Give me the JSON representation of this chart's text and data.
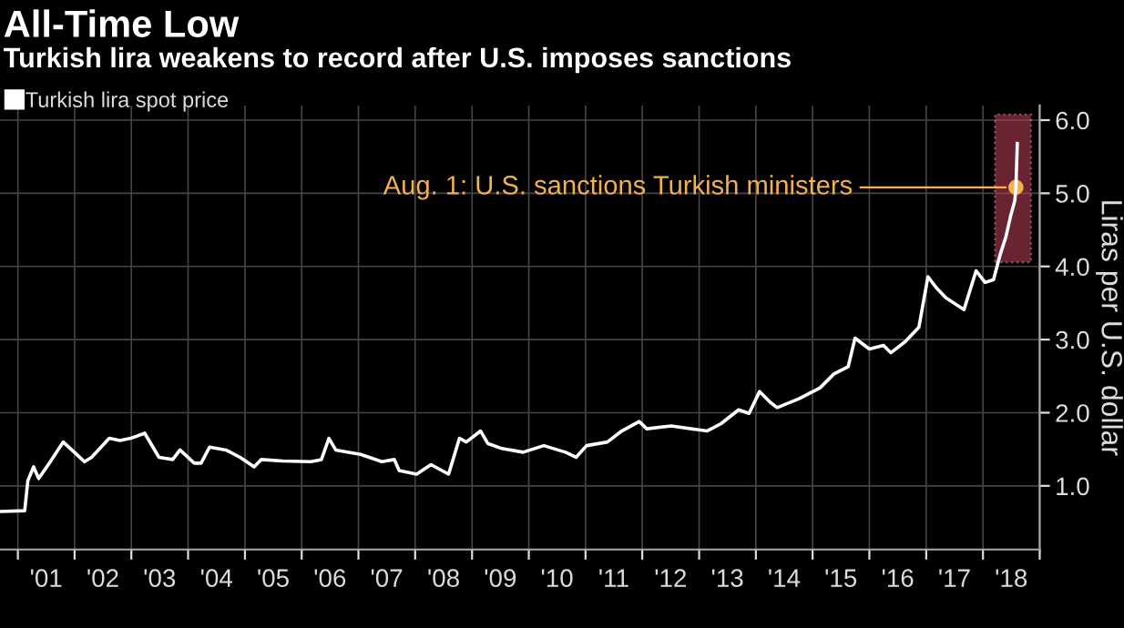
{
  "chart_data": {
    "type": "line",
    "title": "All-Time Low",
    "subtitle": "Turkish lira weakens to record after U.S. imposes sanctions",
    "ylabel": "Liras per U.S. dollar",
    "x": [
      "2000-09-08",
      "2001-02-14",
      "2001-03-06",
      "2001-04-12",
      "2001-05-15",
      "2001-07-22",
      "2001-10-20",
      "2002-03-06",
      "2002-04-20",
      "2002-08-12",
      "2002-10-20",
      "2002-12-28",
      "2003-03-28",
      "2003-06-28",
      "2003-09-24",
      "2003-11-10",
      "2004-02-10",
      "2004-03-25",
      "2004-05-18",
      "2004-09-01",
      "2004-12-01",
      "2005-03-01",
      "2005-04-15",
      "2005-09-01",
      "2006-03-01",
      "2006-05-08",
      "2006-06-25",
      "2006-08-08",
      "2007-01-15",
      "2007-06-01",
      "2007-08-20",
      "2007-09-20",
      "2008-01-10",
      "2008-04-12",
      "2008-08-03",
      "2008-10-12",
      "2008-11-25",
      "2009-02-25",
      "2009-04-12",
      "2009-07-12",
      "2009-11-25",
      "2010-04-08",
      "2010-08-25",
      "2010-11-01",
      "2011-01-08",
      "2011-05-22",
      "2011-08-22",
      "2011-12-12",
      "2012-01-30",
      "2012-07-05",
      "2013-02-20",
      "2013-05-22",
      "2013-09-12",
      "2013-11-18",
      "2014-01-25",
      "2014-04-05",
      "2014-05-18",
      "2014-10-05",
      "2015-02-18",
      "2015-05-18",
      "2015-08-18",
      "2015-10-01",
      "2016-01-01",
      "2016-04-01",
      "2016-05-18",
      "2016-08-18",
      "2016-11-15",
      "2017-01-12",
      "2017-03-10",
      "2017-05-08",
      "2017-09-01",
      "2017-11-18",
      "2018-01-15",
      "2018-03-10",
      "2018-04-20",
      "2018-05-28",
      "2018-06-28",
      "2018-07-25",
      "2018-08-01",
      "2018-08-10"
    ],
    "series": [
      {
        "name": "Turkish lira spot price",
        "color": "#ffffff",
        "values": [
          0.65,
          0.66,
          1.07,
          1.26,
          1.1,
          1.31,
          1.6,
          1.33,
          1.39,
          1.65,
          1.62,
          1.65,
          1.72,
          1.39,
          1.36,
          1.49,
          1.31,
          1.31,
          1.53,
          1.49,
          1.39,
          1.26,
          1.36,
          1.34,
          1.33,
          1.36,
          1.65,
          1.49,
          1.43,
          1.33,
          1.36,
          1.21,
          1.16,
          1.29,
          1.16,
          1.65,
          1.6,
          1.75,
          1.58,
          1.51,
          1.46,
          1.55,
          1.46,
          1.39,
          1.55,
          1.6,
          1.75,
          1.88,
          1.78,
          1.82,
          1.75,
          1.85,
          2.04,
          1.99,
          2.29,
          2.14,
          2.07,
          2.19,
          2.34,
          2.53,
          2.63,
          3.02,
          2.87,
          2.92,
          2.82,
          2.97,
          3.17,
          3.86,
          3.7,
          3.57,
          3.41,
          3.94,
          3.78,
          3.82,
          4.15,
          4.4,
          4.69,
          4.9,
          5.08,
          5.68
        ]
      }
    ],
    "annotations": [
      {
        "text": "Aug. 1: U.S. sanctions Turkish ministers",
        "x": "2018-08-01",
        "y": 5.08
      }
    ],
    "bands": [
      {
        "axis": "x",
        "from": "2018-03-20",
        "to": "2018-11-05",
        "label": null,
        "color": "#c0405a"
      }
    ],
    "xlim": [
      "2000-09-08",
      "2019-01-01"
    ],
    "ylim": [
      0.13,
      6.2
    ],
    "xticks": [
      {
        "value": "2001-01-01",
        "label": null
      },
      {
        "value": "2001-07-02",
        "label": "'01"
      },
      {
        "value": "2002-01-01",
        "label": null
      },
      {
        "value": "2002-07-02",
        "label": "'02"
      },
      {
        "value": "2003-01-01",
        "label": null
      },
      {
        "value": "2003-07-02",
        "label": "'03"
      },
      {
        "value": "2004-01-01",
        "label": null
      },
      {
        "value": "2004-07-02",
        "label": "'04"
      },
      {
        "value": "2005-01-01",
        "label": null
      },
      {
        "value": "2005-07-02",
        "label": "'05"
      },
      {
        "value": "2006-01-01",
        "label": null
      },
      {
        "value": "2006-07-02",
        "label": "'06"
      },
      {
        "value": "2007-01-01",
        "label": null
      },
      {
        "value": "2007-07-02",
        "label": "'07"
      },
      {
        "value": "2008-01-01",
        "label": null
      },
      {
        "value": "2008-07-02",
        "label": "'08"
      },
      {
        "value": "2009-01-01",
        "label": null
      },
      {
        "value": "2009-07-02",
        "label": "'09"
      },
      {
        "value": "2010-01-01",
        "label": null
      },
      {
        "value": "2010-07-02",
        "label": "'10"
      },
      {
        "value": "2011-01-01",
        "label": null
      },
      {
        "value": "2011-07-02",
        "label": "'11"
      },
      {
        "value": "2012-01-01",
        "label": null
      },
      {
        "value": "2012-07-02",
        "label": "'12"
      },
      {
        "value": "2013-01-01",
        "label": null
      },
      {
        "value": "2013-07-02",
        "label": "'13"
      },
      {
        "value": "2014-01-01",
        "label": null
      },
      {
        "value": "2014-07-02",
        "label": "'14"
      },
      {
        "value": "2015-01-01",
        "label": null
      },
      {
        "value": "2015-07-02",
        "label": "'15"
      },
      {
        "value": "2016-01-01",
        "label": null
      },
      {
        "value": "2016-07-02",
        "label": "'16"
      },
      {
        "value": "2017-01-01",
        "label": null
      },
      {
        "value": "2017-07-02",
        "label": "'17"
      },
      {
        "value": "2018-01-01",
        "label": null
      },
      {
        "value": "2018-07-02",
        "label": "'18"
      },
      {
        "value": "2019-01-01",
        "label": null
      }
    ],
    "yticks": [
      {
        "value": 1,
        "label": "1.0"
      },
      {
        "value": 2,
        "label": "2.0"
      },
      {
        "value": 3,
        "label": "3.0"
      },
      {
        "value": 4,
        "label": "4.0"
      },
      {
        "value": 5,
        "label": "5.0"
      },
      {
        "value": 6,
        "label": "6.0"
      }
    ],
    "grid": true,
    "legend": "top left",
    "marker": "none",
    "line_style": "solid"
  }
}
